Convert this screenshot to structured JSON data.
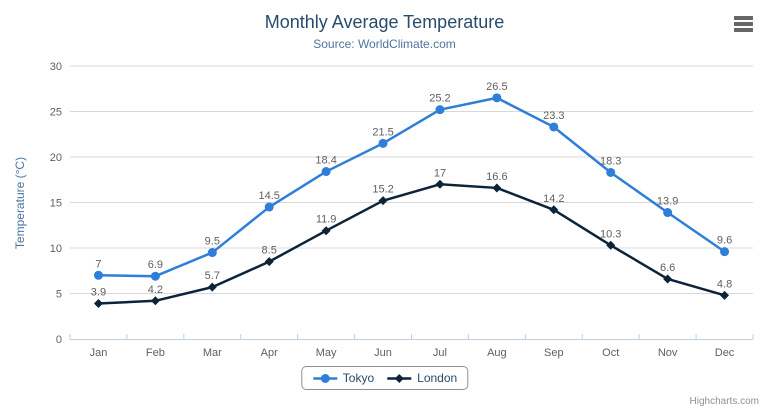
{
  "chart_data": {
    "type": "line",
    "title": "Monthly Average Temperature",
    "subtitle": "Source: WorldClimate.com",
    "xlabel": "",
    "ylabel": "Temperature (°C)",
    "ylim": [
      0,
      30
    ],
    "ytick_interval": 5,
    "yticks": [
      0,
      5,
      10,
      15,
      20,
      25,
      30
    ],
    "grid": true,
    "legend_position": "bottom",
    "data_labels": true,
    "categories": [
      "Jan",
      "Feb",
      "Mar",
      "Apr",
      "May",
      "Jun",
      "Jul",
      "Aug",
      "Sep",
      "Oct",
      "Nov",
      "Dec"
    ],
    "series": [
      {
        "name": "Tokyo",
        "marker": "circle",
        "color": "#2f7ed8",
        "values": [
          7,
          6.9,
          9.5,
          14.5,
          18.4,
          21.5,
          25.2,
          26.5,
          23.3,
          18.3,
          13.9,
          9.6
        ]
      },
      {
        "name": "London",
        "marker": "diamond",
        "color": "#0d233a",
        "values": [
          3.9,
          4.2,
          5.7,
          8.5,
          11.9,
          15.2,
          17,
          16.6,
          14.2,
          10.3,
          6.6,
          4.8
        ]
      }
    ]
  },
  "ui": {
    "credits": "Highcharts.com",
    "context_button_icon": "hamburger-icon"
  },
  "colors": {
    "background": "#ffffff",
    "grid": "#d8d8d8",
    "axis_line": "#c0d0e0",
    "tick_label": "#606060",
    "data_label": "#606060",
    "title": "#274b6d",
    "subtitle": "#4d759e",
    "y_axis_title": "#4d759e",
    "legend_text": "#274b6d",
    "legend_border": "#909090",
    "credits": "#909090",
    "menu_icon": "#666666"
  }
}
